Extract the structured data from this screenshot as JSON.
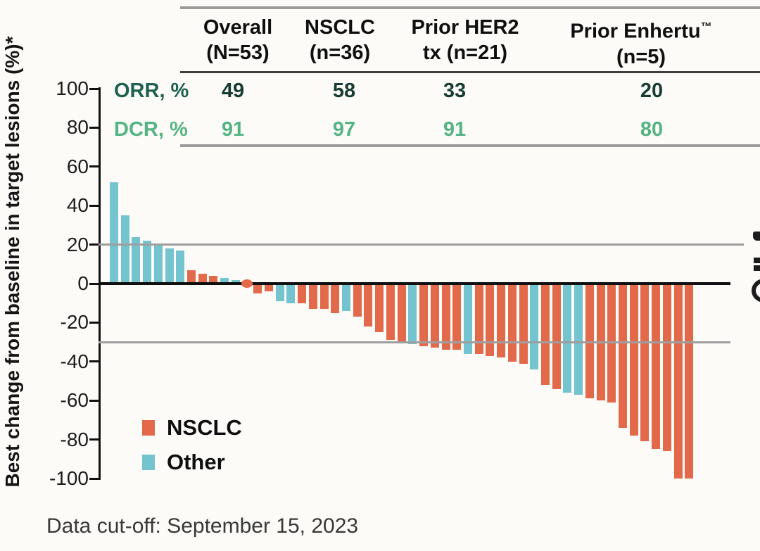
{
  "page": {
    "caption": "Data cut-off: September 15, 2023"
  },
  "summary_table": {
    "columns": [
      {
        "title_line1": "Overall",
        "title_line2": "(N=53)"
      },
      {
        "title_line1": "NSCLC",
        "title_line2": "(n=36)"
      },
      {
        "title_line1": "Prior HER2",
        "title_line2": "tx (n=21)"
      },
      {
        "title_line1": "Prior Enhertu",
        "title_tm": "™",
        "title_line2": "(n=5)"
      }
    ],
    "rows": [
      {
        "label": "ORR, %",
        "values": [
          "49",
          "58",
          "33",
          "20"
        ]
      },
      {
        "label": "DCR, %",
        "values": [
          "91",
          "97",
          "91",
          "80"
        ]
      }
    ]
  },
  "legend": {
    "position": "lower-left",
    "items": [
      {
        "label": "NSCLC",
        "color": "#E26A4B"
      },
      {
        "label": "Other",
        "color": "#73C4CE"
      }
    ]
  },
  "colors": {
    "nsclc": "#E26A4B",
    "other": "#73C4CE",
    "orr_label": "#1E6150",
    "orr_value": "#173C33",
    "dcr": "#54B483",
    "reference_line": "#9E9E9E",
    "axis": "#111111",
    "table_rule": "#9B9B9B"
  },
  "chart_data": {
    "type": "bar",
    "subtype": "waterfall",
    "title": "",
    "xlabel": "",
    "ylabel": "Best change from baseline in target lesions (%)*",
    "ylim": [
      -100,
      100
    ],
    "yticks": [
      100,
      80,
      60,
      40,
      20,
      0,
      -20,
      -40,
      -60,
      -80,
      -100
    ],
    "reference_lines": [
      20,
      -30
    ],
    "grid": false,
    "zero_value_marker": "dot",
    "series_groups": [
      "NSCLC",
      "Other"
    ],
    "bars": [
      {
        "value": 52,
        "group": "Other"
      },
      {
        "value": 35,
        "group": "Other"
      },
      {
        "value": 24,
        "group": "Other"
      },
      {
        "value": 22,
        "group": "Other"
      },
      {
        "value": 20,
        "group": "Other"
      },
      {
        "value": 18,
        "group": "Other"
      },
      {
        "value": 17,
        "group": "Other"
      },
      {
        "value": 7,
        "group": "NSCLC"
      },
      {
        "value": 5,
        "group": "NSCLC"
      },
      {
        "value": 4,
        "group": "NSCLC"
      },
      {
        "value": 3,
        "group": "Other"
      },
      {
        "value": 2,
        "group": "Other"
      },
      {
        "value": 0,
        "group": "NSCLC"
      },
      {
        "value": -5,
        "group": "NSCLC"
      },
      {
        "value": -4,
        "group": "NSCLC"
      },
      {
        "value": -9,
        "group": "Other"
      },
      {
        "value": -10,
        "group": "Other"
      },
      {
        "value": -10,
        "group": "NSCLC"
      },
      {
        "value": -13,
        "group": "NSCLC"
      },
      {
        "value": -13,
        "group": "NSCLC"
      },
      {
        "value": -15,
        "group": "NSCLC"
      },
      {
        "value": -14,
        "group": "Other"
      },
      {
        "value": -17,
        "group": "NSCLC"
      },
      {
        "value": -22,
        "group": "NSCLC"
      },
      {
        "value": -25,
        "group": "NSCLC"
      },
      {
        "value": -29,
        "group": "NSCLC"
      },
      {
        "value": -30,
        "group": "NSCLC"
      },
      {
        "value": -31,
        "group": "Other"
      },
      {
        "value": -32,
        "group": "NSCLC"
      },
      {
        "value": -33,
        "group": "NSCLC"
      },
      {
        "value": -34,
        "group": "NSCLC"
      },
      {
        "value": -34,
        "group": "NSCLC"
      },
      {
        "value": -36,
        "group": "Other"
      },
      {
        "value": -36,
        "group": "NSCLC"
      },
      {
        "value": -37,
        "group": "NSCLC"
      },
      {
        "value": -38,
        "group": "NSCLC"
      },
      {
        "value": -40,
        "group": "NSCLC"
      },
      {
        "value": -41,
        "group": "NSCLC"
      },
      {
        "value": -44,
        "group": "Other"
      },
      {
        "value": -52,
        "group": "NSCLC"
      },
      {
        "value": -54,
        "group": "NSCLC"
      },
      {
        "value": -56,
        "group": "Other"
      },
      {
        "value": -57,
        "group": "Other"
      },
      {
        "value": -59,
        "group": "NSCLC"
      },
      {
        "value": -60,
        "group": "NSCLC"
      },
      {
        "value": -61,
        "group": "NSCLC"
      },
      {
        "value": -74,
        "group": "NSCLC"
      },
      {
        "value": -78,
        "group": "NSCLC"
      },
      {
        "value": -81,
        "group": "NSCLC"
      },
      {
        "value": -85,
        "group": "NSCLC"
      },
      {
        "value": -86,
        "group": "NSCLC"
      },
      {
        "value": -100,
        "group": "NSCLC"
      },
      {
        "value": -100,
        "group": "NSCLC"
      }
    ]
  }
}
